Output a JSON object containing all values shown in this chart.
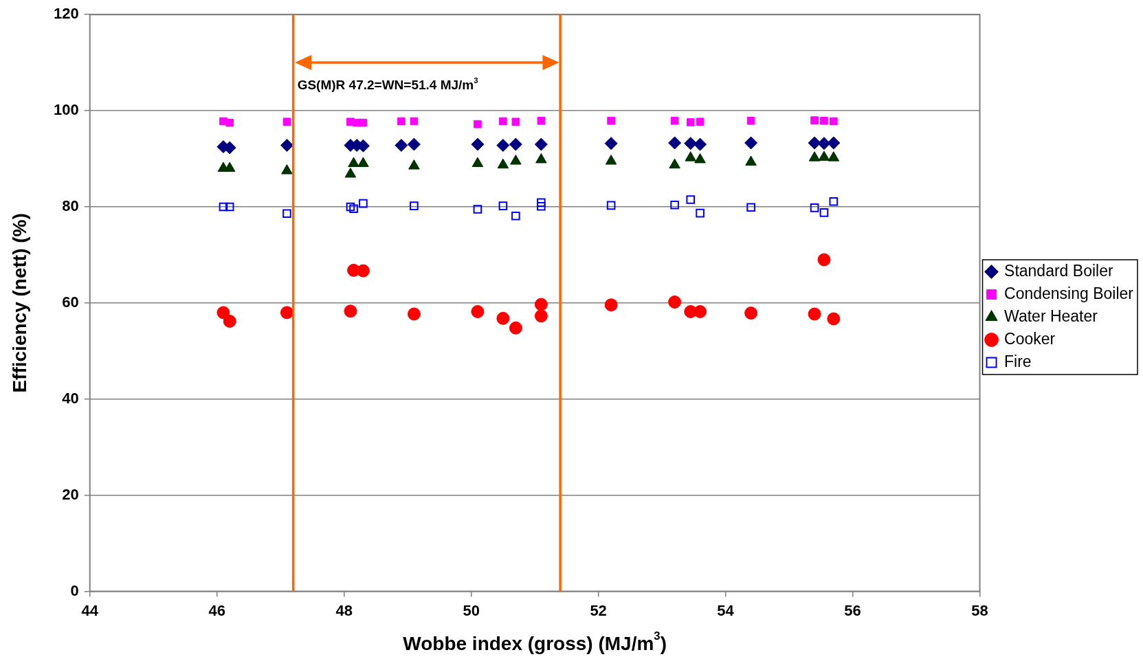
{
  "chart_data": {
    "type": "scatter",
    "xlabel": "Wobbe index (gross) (MJ/m$^{3}$)",
    "ylabel": "Efficiency (nett) (%)",
    "xlim": [
      44,
      58
    ],
    "xticks": [
      44,
      46,
      48,
      50,
      52,
      54,
      56,
      58
    ],
    "ylim": [
      0,
      120
    ],
    "yticks": [
      0,
      20,
      40,
      60,
      80,
      100,
      120
    ],
    "grid": "y",
    "legend": "right",
    "ref_lines": [
      {
        "axis": "x",
        "value": 47.2,
        "label": null,
        "color": "#ff6600"
      },
      {
        "axis": "x",
        "value": 51.4,
        "label": null,
        "color": "#ff6600"
      }
    ],
    "annotations": [
      "GS(M)R 47.2=WN=51.4 MJ/m$^{3}$"
    ],
    "series": [
      {
        "name": "Standard Boiler",
        "color": "#000080",
        "marker": "diamond",
        "x": [
          46.1,
          46.2,
          47.1,
          48.1,
          48.2,
          48.3,
          48.9,
          49.1,
          50.1,
          50.5,
          50.7,
          51.1,
          52.2,
          53.2,
          53.45,
          53.6,
          54.4,
          55.4,
          55.55,
          55.7
        ],
        "values": [
          92.5,
          92.3,
          92.8,
          92.8,
          92.8,
          92.7,
          92.8,
          93,
          93,
          92.8,
          93,
          93,
          93.2,
          93.3,
          93.2,
          93,
          93.3,
          93.3,
          93.2,
          93.3
        ]
      },
      {
        "name": "Condensing Boiler",
        "color": "#ff00ff",
        "marker": "square",
        "x": [
          46.1,
          46.2,
          47.1,
          48.1,
          48.2,
          48.3,
          48.9,
          49.1,
          50.1,
          50.5,
          50.7,
          51.1,
          52.2,
          53.2,
          53.45,
          53.6,
          54.4,
          55.4,
          55.55,
          55.7
        ],
        "values": [
          97.8,
          97.5,
          97.7,
          97.7,
          97.5,
          97.5,
          97.8,
          97.8,
          97.2,
          97.8,
          97.7,
          97.9,
          97.9,
          97.9,
          97.6,
          97.7,
          97.9,
          98,
          97.9,
          97.8
        ]
      },
      {
        "name": "Water Heater",
        "color": "#003300",
        "marker": "triangle",
        "x": [
          46.1,
          46.2,
          47.1,
          48.1,
          48.15,
          48.3,
          49.1,
          50.1,
          50.5,
          50.7,
          51.1,
          52.2,
          53.2,
          53.45,
          53.6,
          54.4,
          55.4,
          55.55,
          55.7
        ],
        "values": [
          88,
          88,
          87.5,
          86.8,
          89,
          89,
          88.5,
          89,
          88.7,
          89.5,
          89.8,
          89.5,
          88.7,
          90.2,
          89.8,
          89.3,
          90.2,
          90.3,
          90.2
        ]
      },
      {
        "name": "Cooker",
        "color": "#ff0000",
        "marker": "circle",
        "x": [
          46.1,
          46.2,
          47.1,
          48.1,
          48.15,
          48.3,
          49.1,
          50.1,
          50.5,
          50.7,
          51.1,
          51.1,
          52.2,
          53.2,
          53.45,
          53.6,
          54.4,
          55.4,
          55.55,
          55.7
        ],
        "values": [
          58,
          56.2,
          58,
          58.3,
          66.8,
          66.7,
          57.7,
          58.2,
          56.8,
          54.8,
          59.7,
          57.3,
          59.6,
          60.2,
          58.2,
          58.2,
          57.9,
          57.7,
          69,
          56.7
        ]
      },
      {
        "name": "Fire",
        "color": "#0000ff",
        "marker": "square-open",
        "x": [
          46.1,
          46.2,
          47.1,
          48.1,
          48.15,
          48.3,
          49.1,
          50.1,
          50.5,
          50.7,
          51.1,
          51.1,
          52.2,
          53.2,
          53.45,
          53.6,
          54.4,
          55.4,
          55.55,
          55.7
        ],
        "values": [
          80,
          80,
          78.6,
          80,
          79.6,
          80.7,
          80.2,
          79.5,
          80.2,
          78.1,
          80.1,
          80.9,
          80.3,
          80.4,
          81.5,
          78.7,
          79.9,
          79.8,
          78.8,
          81.1
        ]
      }
    ]
  }
}
